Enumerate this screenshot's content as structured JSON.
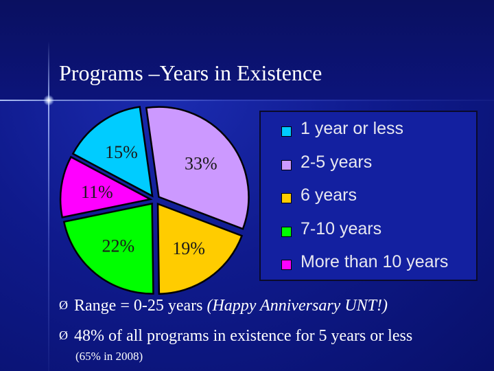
{
  "slide": {
    "title": "Programs –Years in Existence"
  },
  "chart_data": {
    "type": "pie",
    "title": "",
    "categories": [
      "1 year or less",
      "2-5 years",
      "6 years",
      "7-10 years",
      "More than 10 years"
    ],
    "values": [
      15,
      33,
      19,
      22,
      11
    ],
    "data_labels": [
      "15%",
      "33%",
      "19%",
      "22%",
      "11%"
    ],
    "colors": [
      "#00ccff",
      "#cc99ff",
      "#ffcc00",
      "#00ff00",
      "#ff00ff"
    ],
    "legend_position": "right",
    "exploded": true
  },
  "bullets": [
    {
      "marker": "Ø",
      "text": "Range = 0-25 years  ",
      "emphasis": "(Happy Anniversary UNT!)"
    },
    {
      "marker": "Ø",
      "text": "48% of all programs in existence for 5 years or less",
      "emphasis": ""
    }
  ],
  "note": "(65% in 2008)"
}
